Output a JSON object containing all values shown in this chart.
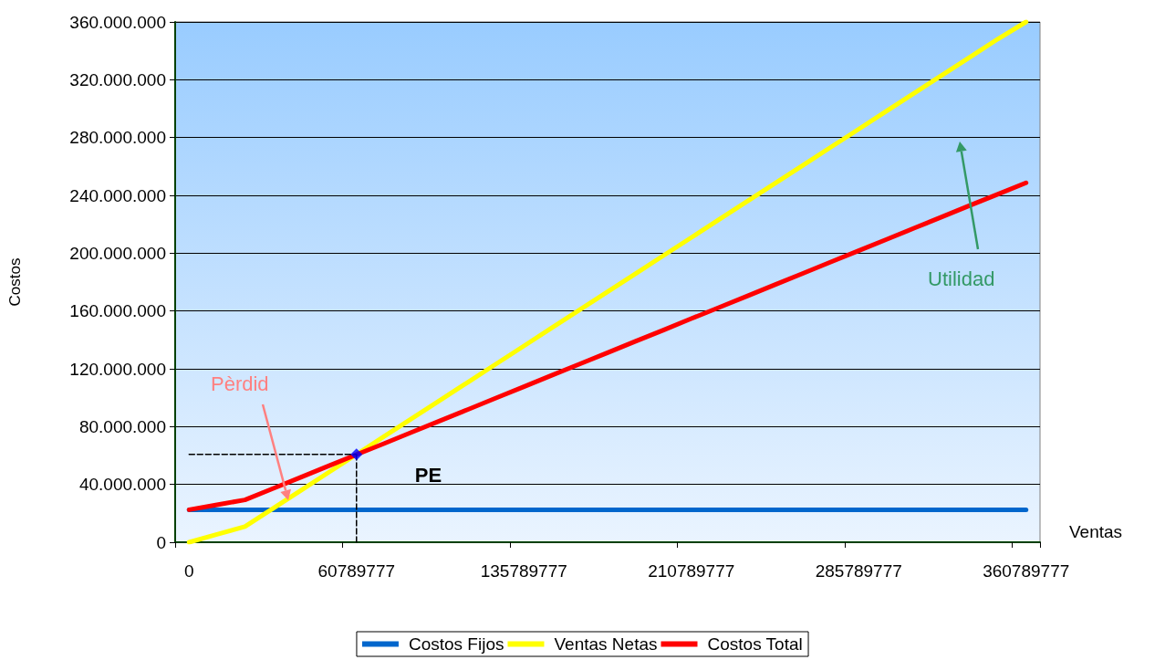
{
  "chart_data": {
    "type": "line",
    "xlabel": "Ventas",
    "ylabel": "Costos",
    "categories": [
      "0",
      null,
      null,
      null,
      null,
      null,
      "60789777",
      null,
      null,
      null,
      null,
      null,
      "135789777",
      null,
      null,
      null,
      null,
      null,
      "210789777",
      null,
      null,
      null,
      null,
      null,
      "285789777",
      null,
      null,
      null,
      null,
      null,
      "360789777"
    ],
    "series": [
      {
        "name": "Costos Fijos",
        "color": "#0066cc",
        "values": [
          22500000,
          22500000,
          22500000,
          22500000,
          22500000,
          22500000,
          22500000,
          22500000,
          22500000,
          22500000,
          22500000,
          22500000,
          22500000,
          22500000,
          22500000,
          22500000,
          22500000,
          22500000,
          22500000,
          22500000,
          22500000,
          22500000,
          22500000,
          22500000,
          22500000,
          22500000,
          22500000,
          22500000,
          22500000,
          22500000,
          22500000
        ]
      },
      {
        "name": "Ventas Netas",
        "color": "#ffff00",
        "values": [
          0,
          5400000,
          10800000,
          23300000,
          35800000,
          48300000,
          60800000,
          73300000,
          85800000,
          98300000,
          110800000,
          123300000,
          135800000,
          148300000,
          160800000,
          173300000,
          185800000,
          198300000,
          210800000,
          223300000,
          235800000,
          248300000,
          260800000,
          273300000,
          285800000,
          298300000,
          310800000,
          323300000,
          335800000,
          348300000,
          360000000
        ]
      },
      {
        "name": "Costos Total",
        "color": "#ff0000",
        "values": [
          22500000,
          25900000,
          29300000,
          37100000,
          44900000,
          52800000,
          60600000,
          68400000,
          76300000,
          84100000,
          91900000,
          99800000,
          107600000,
          115500000,
          123300000,
          131100000,
          139000000,
          146800000,
          154700000,
          162500000,
          170300000,
          178200000,
          186000000,
          193900000,
          201700000,
          209500000,
          217400000,
          225200000,
          233100000,
          240900000,
          248700000
        ]
      },
      {
        "type": "line",
        "color": "#000000",
        "line_style": "dashed",
        "x": [
          "0",
          "60789777"
        ],
        "values": [
          60800000,
          60800000
        ]
      },
      {
        "type": "line",
        "color": "#000000",
        "line_style": "dashed",
        "x": [
          "60789777",
          "60789777"
        ],
        "values": [
          0,
          60800000
        ]
      },
      {
        "type": "scatter",
        "color": "#0000ff",
        "marker": "diamond",
        "x": [
          "60789777"
        ],
        "values": [
          60800000
        ]
      }
    ],
    "ylim": [
      0,
      360000000
    ],
    "yticks": [
      {
        "value": 0,
        "label": "0"
      },
      {
        "value": 40000000,
        "label": "40.000.000"
      },
      {
        "value": 80000000,
        "label": "80.000.000"
      },
      {
        "value": 120000000,
        "label": "120.000.000"
      },
      {
        "value": 160000000,
        "label": "160.000.000"
      },
      {
        "value": 200000000,
        "label": "200.000.000"
      },
      {
        "value": 240000000,
        "label": "240.000.000"
      },
      {
        "value": 280000000,
        "label": "280.000.000"
      },
      {
        "value": 320000000,
        "label": "320.000.000"
      },
      {
        "value": 360000000,
        "label": "360.000.000"
      }
    ],
    "annotations": [
      {
        "text": "PE",
        "x": "60789777",
        "y": 60800000
      },
      "Pèrdid",
      "Utilidad"
    ],
    "grid": "y",
    "legend": "bottom",
    "marker": "none",
    "line_style": "solid"
  }
}
